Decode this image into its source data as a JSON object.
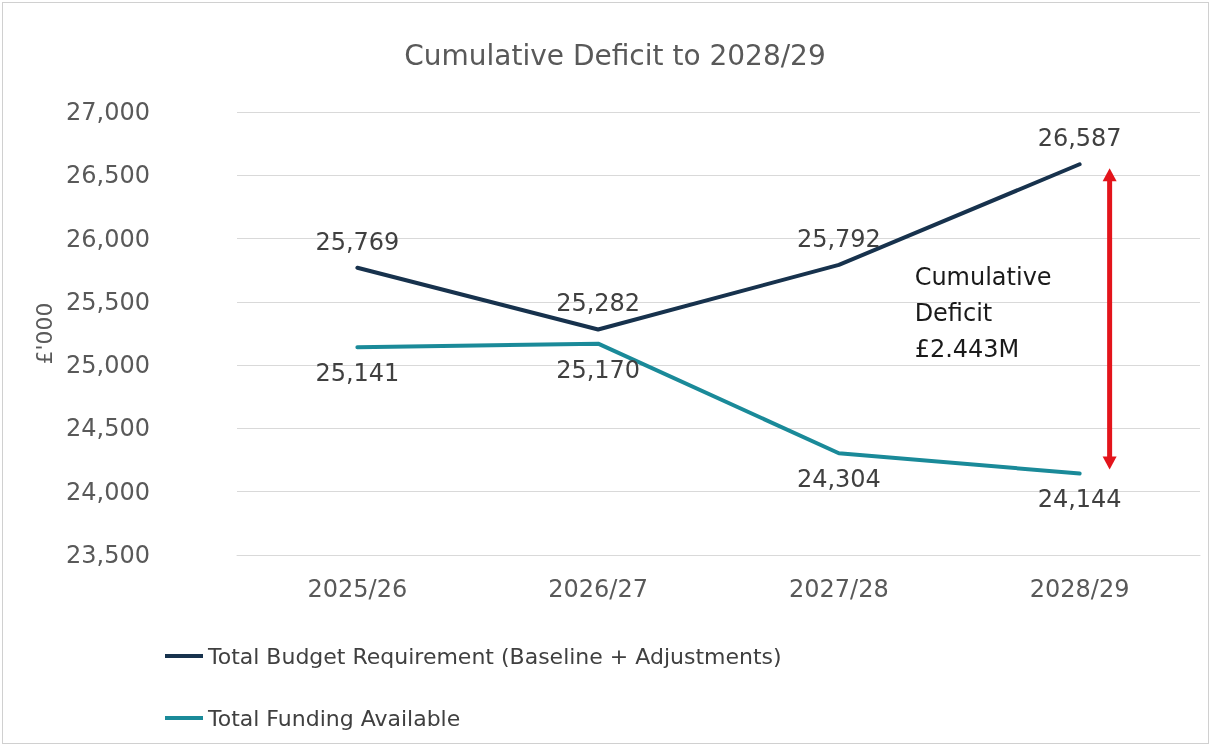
{
  "chart_data": {
    "type": "line",
    "title": "Cumulative Deficit to 2028/29",
    "ylabel": "£'000",
    "categories": [
      "2025/26",
      "2026/27",
      "2027/28",
      "2028/29"
    ],
    "series": [
      {
        "name": "Total Budget Requirement (Baseline + Adjustments)",
        "color": "#17324d",
        "values": [
          25769,
          25282,
          25792,
          26587
        ],
        "value_labels": [
          "25,769",
          "25,282",
          "25,792",
          "26,587"
        ]
      },
      {
        "name": "Total Funding Available",
        "color": "#1a8a99",
        "values": [
          25141,
          25170,
          24304,
          24144
        ],
        "value_labels": [
          "25,141",
          "25,170",
          "24,304",
          "24,144"
        ]
      }
    ],
    "ylim": [
      23500,
      27000
    ],
    "yticks": [
      {
        "value": 23500,
        "label": "23,500"
      },
      {
        "value": 24000,
        "label": "24,000"
      },
      {
        "value": 24500,
        "label": "24,500"
      },
      {
        "value": 25000,
        "label": "25,000"
      },
      {
        "value": 25500,
        "label": "25,500"
      },
      {
        "value": 26000,
        "label": "26,000"
      },
      {
        "value": 26500,
        "label": "26,500"
      },
      {
        "value": 27000,
        "label": "27,000"
      }
    ],
    "grid": "y",
    "legend": "bottom left",
    "marker": "none",
    "line_style": "solid",
    "annotations": [
      "Cumulative\nDeficit\n£2.443M"
    ]
  }
}
